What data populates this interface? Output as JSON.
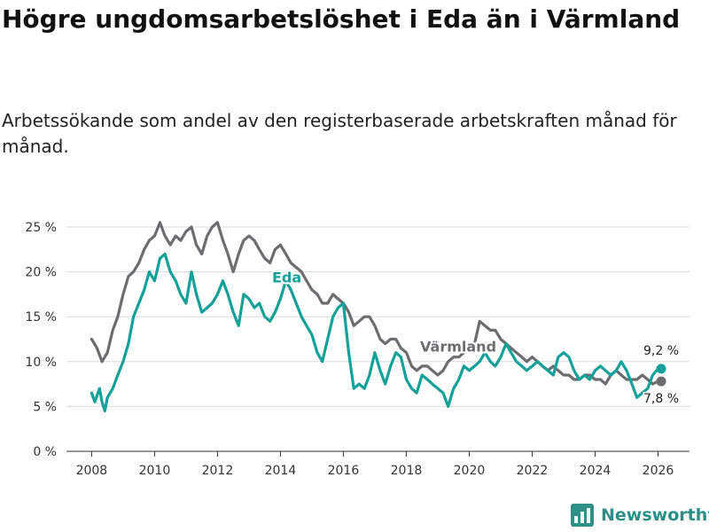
{
  "header": {
    "title": "Högre ungdomsarbetslöshet i Eda än i Värmland",
    "subtitle": "Arbetssökande som andel av den registerbaserade arbetskraften månad för månad."
  },
  "brand": {
    "name": "Newsworthy",
    "color": "#2e9087"
  },
  "chart_data": {
    "type": "line",
    "title": "Högre ungdomsarbetslöshet i Eda än i Värmland",
    "subtitle": "Arbetssökande som andel av den registerbaserade arbetskraften månad för månad.",
    "xlabel": "",
    "ylabel": "",
    "xlim": [
      2007.2,
      2027.0
    ],
    "ylim": [
      0,
      25
    ],
    "x_ticks": [
      2008,
      2010,
      2012,
      2014,
      2016,
      2018,
      2020,
      2022,
      2024,
      2026
    ],
    "x_tick_labels": [
      "2008",
      "2010",
      "2012",
      "2014",
      "2016",
      "2018",
      "2020",
      "2022",
      "2024",
      "2026"
    ],
    "y_ticks": [
      0,
      5,
      10,
      15,
      20,
      25
    ],
    "y_tick_labels": [
      "0 %",
      "5 %",
      "10 %",
      "15 %",
      "20 %",
      "25 %"
    ],
    "grid": true,
    "series": [
      {
        "name": "Värmland",
        "color": "#6d6d6f",
        "label_x": 2019.65,
        "label_y": 11.1,
        "end_label": "7,8 %",
        "x": [
          2008.0,
          2008.17,
          2008.33,
          2008.5,
          2008.67,
          2008.83,
          2009.0,
          2009.17,
          2009.33,
          2009.5,
          2009.67,
          2009.83,
          2010.0,
          2010.17,
          2010.33,
          2010.5,
          2010.67,
          2010.83,
          2011.0,
          2011.17,
          2011.33,
          2011.5,
          2011.67,
          2011.83,
          2012.0,
          2012.17,
          2012.33,
          2012.5,
          2012.67,
          2012.83,
          2013.0,
          2013.17,
          2013.33,
          2013.5,
          2013.67,
          2013.83,
          2014.0,
          2014.17,
          2014.33,
          2014.5,
          2014.67,
          2014.83,
          2015.0,
          2015.17,
          2015.33,
          2015.5,
          2015.67,
          2015.83,
          2016.0,
          2016.17,
          2016.33,
          2016.5,
          2016.67,
          2016.83,
          2017.0,
          2017.17,
          2017.33,
          2017.5,
          2017.67,
          2017.83,
          2018.0,
          2018.17,
          2018.33,
          2018.5,
          2018.67,
          2018.83,
          2019.0,
          2019.17,
          2019.33,
          2019.5,
          2019.67,
          2019.83,
          2020.0,
          2020.17,
          2020.33,
          2020.5,
          2020.67,
          2020.83,
          2021.0,
          2021.17,
          2021.33,
          2021.5,
          2021.67,
          2021.83,
          2022.0,
          2022.17,
          2022.33,
          2022.5,
          2022.67,
          2022.83,
          2023.0,
          2023.17,
          2023.33,
          2023.5,
          2023.67,
          2023.83,
          2024.0,
          2024.17,
          2024.33,
          2024.5,
          2024.67,
          2024.83,
          2025.0,
          2025.17,
          2025.33,
          2025.5,
          2025.67,
          2025.83,
          2026.0,
          2026.1
        ],
        "y": [
          12.5,
          11.5,
          10.0,
          11.0,
          13.5,
          15.0,
          17.5,
          19.5,
          20.0,
          21.0,
          22.5,
          23.5,
          24.0,
          25.5,
          24.0,
          23.0,
          24.0,
          23.5,
          24.5,
          25.0,
          23.0,
          22.0,
          24.0,
          25.0,
          25.5,
          23.5,
          22.0,
          20.0,
          22.0,
          23.5,
          24.0,
          23.5,
          22.5,
          21.5,
          21.0,
          22.5,
          23.0,
          22.0,
          21.0,
          20.5,
          20.0,
          19.0,
          18.0,
          17.5,
          16.5,
          16.5,
          17.5,
          17.0,
          16.5,
          15.5,
          14.0,
          14.5,
          15.0,
          15.0,
          14.0,
          12.5,
          12.0,
          12.5,
          12.5,
          11.5,
          11.0,
          9.5,
          9.0,
          9.5,
          9.5,
          9.0,
          8.5,
          9.0,
          10.0,
          10.5,
          10.5,
          11.0,
          11.5,
          12.0,
          14.5,
          14.0,
          13.5,
          13.5,
          12.5,
          12.0,
          11.5,
          11.0,
          10.5,
          10.0,
          10.5,
          10.0,
          9.5,
          9.0,
          9.5,
          9.0,
          8.5,
          8.5,
          8.0,
          8.0,
          8.5,
          8.5,
          8.0,
          8.0,
          7.5,
          8.5,
          9.0,
          8.5,
          8.0,
          8.0,
          8.0,
          8.5,
          8.0,
          7.5,
          7.8,
          7.8
        ]
      },
      {
        "name": "Eda",
        "color": "#14a19a",
        "label_x": 2014.2,
        "label_y": 18.8,
        "end_label": "9,2 %",
        "x": [
          2008.0,
          2008.1,
          2008.25,
          2008.33,
          2008.42,
          2008.5,
          2008.67,
          2008.83,
          2009.0,
          2009.17,
          2009.33,
          2009.5,
          2009.67,
          2009.83,
          2010.0,
          2010.17,
          2010.33,
          2010.5,
          2010.67,
          2010.83,
          2011.0,
          2011.17,
          2011.33,
          2011.5,
          2011.67,
          2011.83,
          2012.0,
          2012.17,
          2012.33,
          2012.5,
          2012.67,
          2012.83,
          2013.0,
          2013.17,
          2013.33,
          2013.5,
          2013.67,
          2013.83,
          2014.0,
          2014.17,
          2014.33,
          2014.5,
          2014.67,
          2014.83,
          2015.0,
          2015.17,
          2015.33,
          2015.5,
          2015.67,
          2015.83,
          2016.0,
          2016.17,
          2016.33,
          2016.5,
          2016.67,
          2016.83,
          2017.0,
          2017.17,
          2017.33,
          2017.5,
          2017.67,
          2017.83,
          2018.0,
          2018.17,
          2018.33,
          2018.5,
          2018.67,
          2018.83,
          2019.0,
          2019.17,
          2019.33,
          2019.5,
          2019.67,
          2019.83,
          2020.0,
          2020.17,
          2020.33,
          2020.5,
          2020.67,
          2020.83,
          2021.0,
          2021.17,
          2021.33,
          2021.5,
          2021.67,
          2021.83,
          2022.0,
          2022.17,
          2022.33,
          2022.5,
          2022.67,
          2022.83,
          2023.0,
          2023.17,
          2023.33,
          2023.5,
          2023.67,
          2023.83,
          2024.0,
          2024.17,
          2024.33,
          2024.5,
          2024.67,
          2024.83,
          2025.0,
          2025.17,
          2025.33,
          2025.5,
          2025.67,
          2025.83,
          2026.0,
          2026.1
        ],
        "y": [
          6.5,
          5.5,
          7.0,
          5.5,
          4.5,
          6.0,
          7.0,
          8.5,
          10.0,
          12.0,
          15.0,
          16.5,
          18.0,
          20.0,
          19.0,
          21.5,
          22.0,
          20.0,
          19.0,
          17.5,
          16.5,
          20.0,
          17.5,
          15.5,
          16.0,
          16.5,
          17.5,
          19.0,
          17.5,
          15.5,
          14.0,
          17.5,
          17.0,
          16.0,
          16.5,
          15.0,
          14.5,
          15.5,
          17.0,
          19.0,
          18.0,
          16.5,
          15.0,
          14.0,
          13.0,
          11.0,
          10.0,
          12.5,
          15.0,
          16.0,
          16.5,
          11.0,
          7.0,
          7.5,
          7.0,
          8.5,
          11.0,
          9.0,
          7.5,
          9.5,
          11.0,
          10.5,
          8.0,
          7.0,
          6.5,
          8.5,
          8.0,
          7.5,
          7.0,
          6.5,
          5.0,
          7.0,
          8.0,
          9.5,
          9.0,
          9.5,
          10.0,
          11.0,
          10.0,
          9.5,
          10.5,
          12.0,
          11.0,
          10.0,
          9.5,
          9.0,
          9.5,
          10.0,
          9.5,
          9.0,
          8.5,
          10.5,
          11.0,
          10.5,
          9.0,
          8.0,
          8.5,
          8.0,
          9.0,
          9.5,
          9.0,
          8.5,
          9.0,
          10.0,
          9.0,
          7.5,
          6.0,
          6.5,
          7.0,
          8.5,
          9.2,
          9.2
        ]
      }
    ]
  }
}
